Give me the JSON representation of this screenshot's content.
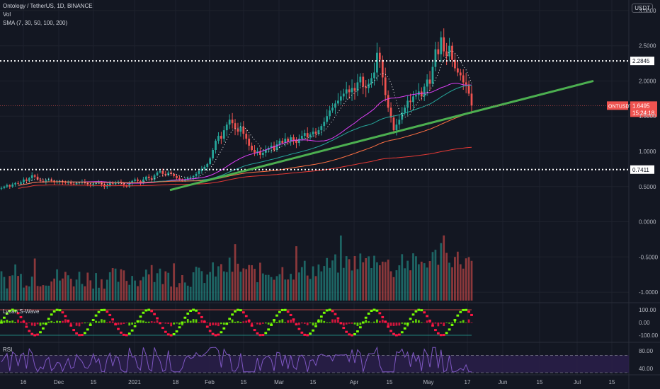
{
  "header": {
    "symbol_line": "Ontology / TetherUS, 1D, BINANCE",
    "vol_label": "Vol",
    "sma_label": "SMA (7, 30, 50, 100, 200)",
    "currency_button": "USDT"
  },
  "colors": {
    "background": "#131722",
    "up": "#26a69a",
    "down": "#ef5350",
    "trendline": "#4caf50",
    "level_line": "#ffffff",
    "last_price_tag": "#ef5350",
    "rsi_line": "#7e57c2",
    "rsi_band": "#2a1f4a",
    "swave_up": "#76ff03",
    "swave_down": "#ff1744"
  },
  "chart_data": [
    {
      "type": "candlestick",
      "pane": "price",
      "y_axis_labels": [
        "3.0000",
        "2.5000",
        "2.0000",
        "1.5000",
        "1.0000",
        "0.5000",
        "0.0000",
        "-0.5000",
        "-1.0000"
      ],
      "y_axis_values": [
        3.0,
        2.5,
        2.0,
        1.5,
        1.0,
        0.5,
        0.0,
        -0.5,
        -1.0
      ],
      "ylim": [
        -1.15,
        3.15
      ],
      "x_axis_labels": [
        "16",
        "Dec",
        "15",
        "2021",
        "18",
        "Feb",
        "15",
        "Mar",
        "15",
        "Apr",
        "15",
        "May",
        "17",
        "Jun",
        "15",
        "Jul",
        "15"
      ],
      "horizontal_levels": [
        {
          "value": 2.2845,
          "label": "2.2845"
        },
        {
          "value": 0.7411,
          "label": "0.7411"
        }
      ],
      "last_price": {
        "symbol": "ONTUSDT",
        "value": "1.6495",
        "countdown": "15:24:18"
      },
      "trendline": {
        "from": 0.45,
        "to": 2.0
      },
      "closes": [
        0.48,
        0.5,
        0.52,
        0.5,
        0.53,
        0.55,
        0.54,
        0.56,
        0.6,
        0.58,
        0.62,
        0.66,
        0.64,
        0.6,
        0.58,
        0.57,
        0.59,
        0.6,
        0.58,
        0.56,
        0.57,
        0.58,
        0.56,
        0.55,
        0.56,
        0.54,
        0.53,
        0.55,
        0.56,
        0.57,
        0.55,
        0.53,
        0.52,
        0.54,
        0.55,
        0.56,
        0.53,
        0.5,
        0.52,
        0.55,
        0.54,
        0.56,
        0.57,
        0.55,
        0.52,
        0.5,
        0.55,
        0.58,
        0.6,
        0.58,
        0.55,
        0.6,
        0.64,
        0.62,
        0.6,
        0.66,
        0.7,
        0.72,
        0.68,
        0.66,
        0.7,
        0.68,
        0.65,
        0.62,
        0.6,
        0.58,
        0.6,
        0.62,
        0.63,
        0.65,
        0.68,
        0.72,
        0.75,
        0.78,
        0.82,
        0.9,
        1.02,
        1.15,
        1.22,
        1.18,
        1.3,
        1.38,
        1.45,
        1.4,
        1.32,
        1.28,
        1.35,
        1.25,
        1.18,
        1.08,
        1.02,
        0.98,
        1.0,
        0.95,
        0.98,
        1.02,
        1.05,
        1.08,
        1.02,
        1.1,
        1.15,
        1.12,
        1.18,
        1.14,
        1.2,
        1.16,
        1.12,
        1.18,
        1.22,
        1.26,
        1.2,
        1.24,
        1.28,
        1.25,
        1.3,
        1.36,
        1.42,
        1.5,
        1.58,
        1.62,
        1.68,
        1.72,
        1.78,
        1.82,
        1.88,
        1.84,
        1.9,
        1.86,
        1.98,
        2.06,
        1.92,
        1.9,
        1.96,
        2.04,
        2.12,
        2.4,
        2.3,
        2.05,
        1.8,
        1.62,
        1.48,
        1.3,
        1.38,
        1.45,
        1.55,
        1.62,
        1.72,
        1.7,
        1.78,
        1.8,
        1.85,
        1.78,
        1.92,
        2.02,
        1.96,
        2.2,
        2.45,
        2.38,
        2.62,
        2.42,
        2.35,
        2.5,
        2.3,
        2.18,
        2.12,
        2.08,
        1.98,
        1.95,
        1.82,
        1.65
      ]
    },
    {
      "type": "bar",
      "pane": "volume",
      "series": [
        {
          "name": "Vol"
        }
      ]
    },
    {
      "type": "area",
      "pane": "swave",
      "title": "Lycan S-Wave",
      "y_axis_labels": [
        "100.00",
        "0.00",
        "-100.00"
      ],
      "y_axis_values": [
        100,
        0,
        -100
      ]
    },
    {
      "type": "line",
      "pane": "rsi",
      "title": "RSI",
      "y_axis_labels": [
        "80.00",
        "40.00"
      ],
      "y_axis_values": [
        80,
        40
      ],
      "ylim": [
        25,
        95
      ]
    }
  ]
}
